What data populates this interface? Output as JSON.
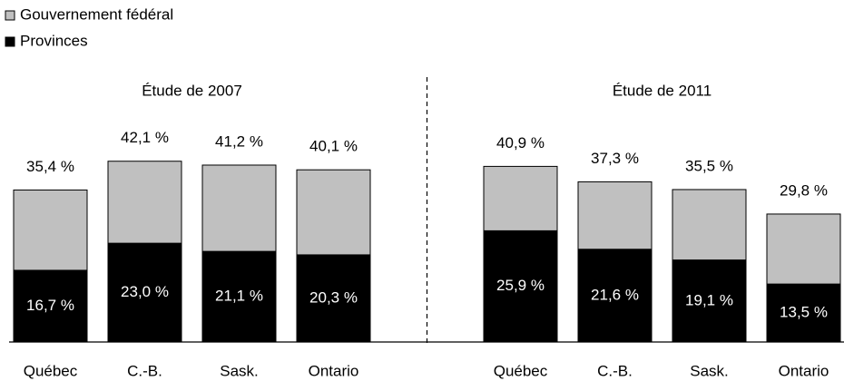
{
  "chart_data": {
    "type": "bar",
    "stacked": true,
    "group_titles": [
      "Étude de 2007",
      "Étude de 2011"
    ],
    "categories": [
      "Québec",
      "C.-B.",
      "Sask.",
      "Ontario",
      "Québec",
      "C.-B.",
      "Sask.",
      "Ontario"
    ],
    "series": [
      {
        "name": "Provinces",
        "color": "#000000",
        "values": [
          16.7,
          23.0,
          21.1,
          20.3,
          25.9,
          21.6,
          19.1,
          13.5
        ],
        "value_labels": [
          "16,7 %",
          "23,0 %",
          "21,1 %",
          "20,3 %",
          "25,9 %",
          "21,6 %",
          "19,1 %",
          "13,5 %"
        ]
      },
      {
        "name": "Gouvernement fédéral",
        "color": "#c0c0c0",
        "values": [
          18.7,
          19.1,
          20.1,
          19.8,
          15.0,
          15.7,
          16.4,
          16.3
        ]
      }
    ],
    "totals": [
      35.4,
      42.1,
      41.2,
      40.1,
      40.9,
      37.3,
      35.5,
      29.8
    ],
    "total_labels": [
      "35,4 %",
      "42,1 %",
      "41,2 %",
      "40,1 %",
      "40,9 %",
      "37,3 %",
      "35,5 %",
      "29,8 %"
    ],
    "ylim": [
      0,
      45
    ]
  }
}
